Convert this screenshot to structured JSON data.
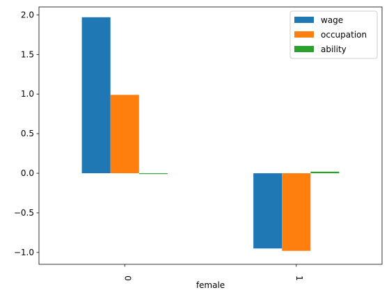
{
  "chart_data": {
    "type": "bar",
    "categories": [
      "0",
      "1"
    ],
    "series": [
      {
        "name": "wage",
        "color": "#1f77b4",
        "values": [
          1.97,
          -0.95
        ]
      },
      {
        "name": "occupation",
        "color": "#ff7f0e",
        "values": [
          0.99,
          -0.98
        ]
      },
      {
        "name": "ability",
        "color": "#2ca02c",
        "values": [
          -0.01,
          0.02
        ]
      }
    ],
    "title": "",
    "xlabel": "female",
    "ylabel": "",
    "ylim": [
      -1.15,
      2.1
    ],
    "yticks": [
      -1.0,
      -0.5,
      0.0,
      0.5,
      1.0,
      1.5,
      2.0
    ],
    "ytick_labels": [
      "−1.0",
      "−0.5",
      "0.0",
      "0.5",
      "1.0",
      "1.5",
      "2.0"
    ],
    "xtick_rotation": "vertical",
    "legend_position": "top-right",
    "grid": false
  }
}
